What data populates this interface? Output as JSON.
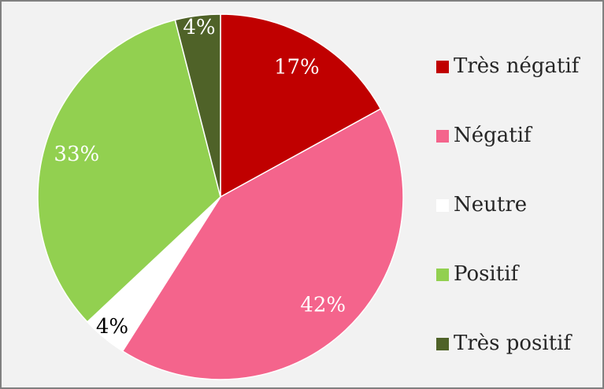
{
  "chart_data": {
    "type": "pie",
    "categories": [
      "Très négatif",
      "Négatif",
      "Neutre",
      "Positif",
      "Très positif"
    ],
    "values": [
      17,
      42,
      4,
      33,
      4
    ],
    "value_labels": [
      "17%",
      "42%",
      "4%",
      "33%",
      "4%"
    ],
    "colors": [
      "#c00000",
      "#f4648c",
      "#ffffff",
      "#92d050",
      "#4f6228"
    ],
    "legend": "right"
  }
}
